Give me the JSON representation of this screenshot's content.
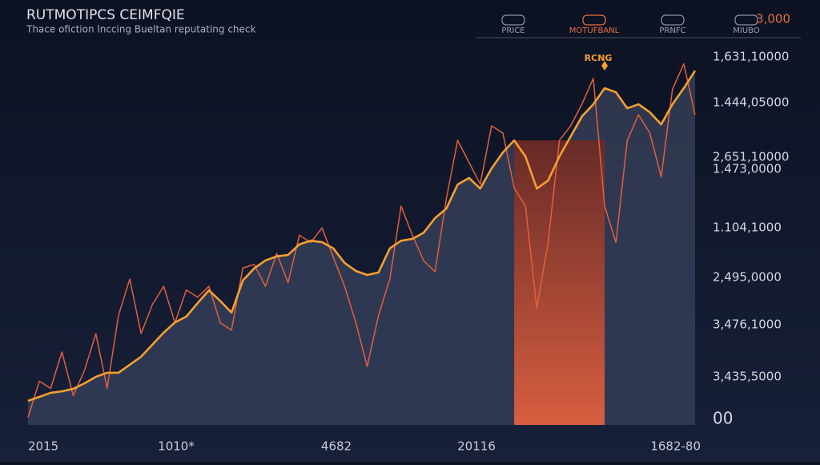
{
  "chart_data": {
    "type": "line",
    "title": "RUTMOTIPCS CEIMFQIE",
    "subtitle": "Thace ofiction lnccing Bueltan reputating check",
    "tabs": [
      "PRICE",
      "MOTUFBANL",
      "PRNFC",
      "MIUBO"
    ],
    "active_tab": 1,
    "top_value_label": "3,000",
    "x": [
      0,
      1,
      2,
      3,
      4,
      5,
      6,
      7,
      8,
      9,
      10,
      11,
      12,
      13,
      14,
      15,
      16,
      17,
      18,
      19,
      20,
      21,
      22,
      23,
      24,
      25,
      26,
      27,
      28,
      29,
      30,
      31,
      32,
      33,
      34,
      35,
      36,
      37,
      38,
      39,
      40,
      41,
      42,
      43,
      44,
      45,
      46,
      47,
      48,
      49,
      50,
      51,
      52,
      53,
      54,
      55,
      56,
      57,
      58,
      59
    ],
    "xlim": [
      0,
      59
    ],
    "ylim": [
      0,
      102
    ],
    "x_labels": [
      "2015",
      "1010*",
      "4682",
      "20116",
      "1682-80"
    ],
    "y_labels": [
      "1,631,10000",
      "1.444,05000",
      "2,651,10000",
      "1.473,0000",
      "1.104,1000",
      "2,495,0000",
      "3,476,1000",
      "3,435,5000",
      "00"
    ],
    "series": [
      {
        "name": "raw",
        "color": "#e0603e",
        "values": [
          2,
          12,
          10,
          20,
          8,
          15,
          25,
          10,
          30,
          40,
          25,
          33,
          38,
          28,
          37,
          35,
          38,
          28,
          26,
          43,
          44,
          38,
          47,
          39,
          52,
          50,
          54,
          46,
          38,
          28,
          16,
          30,
          40,
          60,
          52,
          45,
          42,
          62,
          78,
          72,
          66,
          82,
          80,
          65,
          60,
          32,
          50,
          78,
          82,
          88,
          95,
          60,
          50,
          78,
          85,
          80,
          68,
          92,
          99,
          85
        ]
      },
      {
        "name": "smoothed",
        "color": "#f5a030",
        "values": [
          6.6,
          7.7,
          8.8,
          9.2,
          9.9,
          11.4,
          13.2,
          14.3,
          14.3,
          16.5,
          18.7,
          22,
          25.3,
          28.1,
          29.7,
          33.4,
          36.9,
          34,
          30.8,
          39.6,
          42.9,
          45.1,
          46.2,
          46.6,
          49.5,
          50.5,
          50.1,
          48.4,
          44.4,
          42.2,
          41.1,
          41.8,
          48.4,
          50.5,
          51,
          52.7,
          56.7,
          59.3,
          65.9,
          67.7,
          64.8,
          70.3,
          74.7,
          78,
          73.6,
          64.8,
          67,
          73.6,
          79.1,
          84.6,
          87.9,
          92.3,
          91.2,
          86.8,
          87.9,
          85.7,
          82.4,
          87.9,
          92.3,
          97.1
        ]
      }
    ],
    "highlight": {
      "x": [
        43,
        51
      ],
      "label": "RCNG"
    }
  }
}
